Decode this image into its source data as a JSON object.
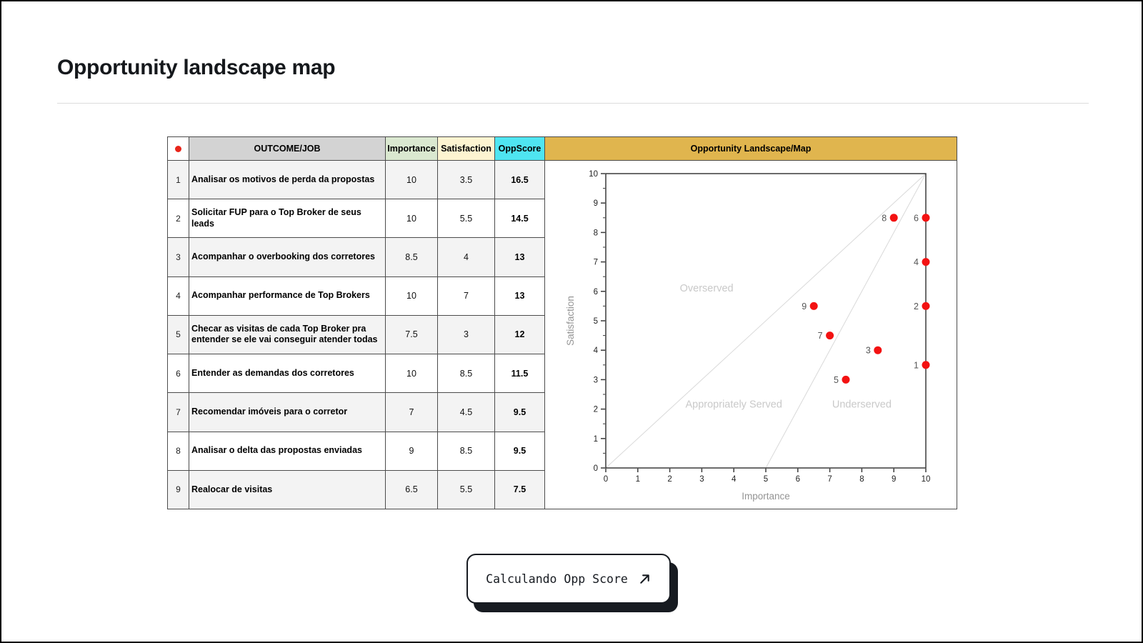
{
  "page": {
    "title": "Opportunity landscape map"
  },
  "table": {
    "headers": {
      "marker_icon": "red-dot",
      "outcome": "OUTCOME/JOB",
      "importance": "Importance",
      "satisfaction": "Satisfaction",
      "oppscore": "OppScore"
    },
    "header_colors": {
      "marker": "#ffffff",
      "outcome": "#d3d3d3",
      "importance": "#dae8d0",
      "satisfaction": "#fdf4d1",
      "oppscore": "#4fe5f1"
    },
    "rows": [
      {
        "num": "1",
        "outcome": "Analisar os motivos de perda da propostas",
        "importance": "10",
        "satisfaction": "3.5",
        "oppscore": "16.5"
      },
      {
        "num": "2",
        "outcome": "Solicitar FUP para o Top Broker de seus leads",
        "importance": "10",
        "satisfaction": "5.5",
        "oppscore": "14.5"
      },
      {
        "num": "3",
        "outcome": "Acompanhar o overbooking dos corretores",
        "importance": "8.5",
        "satisfaction": "4",
        "oppscore": "13"
      },
      {
        "num": "4",
        "outcome": "Acompanhar performance de Top Brokers",
        "importance": "10",
        "satisfaction": "7",
        "oppscore": "13"
      },
      {
        "num": "5",
        "outcome": "Checar as visitas de cada Top Broker pra entender se ele vai conseguir atender todas",
        "importance": "7.5",
        "satisfaction": "3",
        "oppscore": "12"
      },
      {
        "num": "6",
        "outcome": "Entender as demandas dos corretores",
        "importance": "10",
        "satisfaction": "8.5",
        "oppscore": "11.5"
      },
      {
        "num": "7",
        "outcome": "Recomendar imóveis para o corretor",
        "importance": "7",
        "satisfaction": "4.5",
        "oppscore": "9.5"
      },
      {
        "num": "8",
        "outcome": "Analisar o delta das propostas enviadas",
        "importance": "9",
        "satisfaction": "8.5",
        "oppscore": "9.5"
      },
      {
        "num": "9",
        "outcome": "Realocar de visitas",
        "importance": "6.5",
        "satisfaction": "5.5",
        "oppscore": "7.5"
      }
    ]
  },
  "chart_data": {
    "type": "scatter",
    "title": "Opportunity Landscape/Map",
    "title_bg_color": "#e0b54e",
    "xlabel": "Importance",
    "ylabel": "Satisfaction",
    "xlim": [
      0,
      10
    ],
    "ylim": [
      0,
      10
    ],
    "x_ticks": [
      0,
      1,
      2,
      3,
      4,
      5,
      6,
      7,
      8,
      9,
      10
    ],
    "y_ticks": [
      0,
      1,
      2,
      3,
      4,
      5,
      6,
      7,
      8,
      9,
      10
    ],
    "grid": false,
    "point_color": "#f31212",
    "points": [
      {
        "label": "1",
        "x": 10,
        "y": 3.5
      },
      {
        "label": "2",
        "x": 10,
        "y": 5.5
      },
      {
        "label": "3",
        "x": 8.5,
        "y": 4
      },
      {
        "label": "4",
        "x": 10,
        "y": 7
      },
      {
        "label": "5",
        "x": 7.5,
        "y": 3
      },
      {
        "label": "6",
        "x": 10,
        "y": 8.5
      },
      {
        "label": "7",
        "x": 7,
        "y": 4.5
      },
      {
        "label": "8",
        "x": 9,
        "y": 8.5
      },
      {
        "label": "9",
        "x": 6.5,
        "y": 5.5
      }
    ],
    "reference_lines": [
      {
        "from": [
          0,
          0
        ],
        "to": [
          10,
          10
        ]
      },
      {
        "from": [
          5,
          0
        ],
        "to": [
          10,
          10
        ]
      }
    ],
    "zone_labels": [
      {
        "text": "Overserved",
        "x": 3.15,
        "y": 6.0
      },
      {
        "text": "Appropriately Served",
        "x": 4.0,
        "y": 2.05
      },
      {
        "text": "Underserved",
        "x": 8.0,
        "y": 2.05
      }
    ]
  },
  "button": {
    "label": "Calculando Opp Score",
    "icon": "arrow-up-right",
    "shadow_color": "#171b21"
  }
}
